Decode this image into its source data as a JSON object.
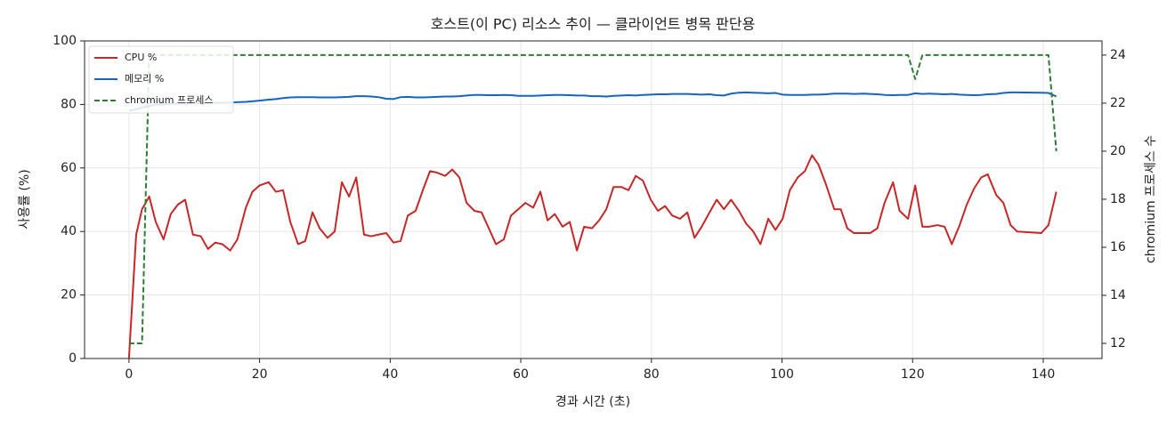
{
  "chart_data": {
    "type": "line",
    "title": "호스트(이 PC) 리소스 추이 — 클라이언트 병목 판단용",
    "x_label": "경과 시간 (초)",
    "y_label": "사용률 (%)",
    "y2_label": "chromium 프로세스 수",
    "xlim": [
      -6.8,
      149
    ],
    "xticks": [
      0,
      20,
      40,
      60,
      80,
      100,
      120,
      140
    ],
    "ylim": [
      0,
      100
    ],
    "yticks": [
      0,
      20,
      40,
      60,
      80,
      100
    ],
    "y2lim": [
      11.37,
      24.59
    ],
    "y2ticks": [
      12,
      14,
      16,
      18,
      20,
      22,
      24
    ],
    "grid": true,
    "legend": "upper left",
    "x": [
      0,
      1.1,
      2,
      3.1,
      4.1,
      5.3,
      6.4,
      7.5,
      8.6,
      9.8,
      11,
      12.1,
      13.2,
      14.3,
      15.5,
      16.6,
      17.9,
      18.9,
      20,
      21.4,
      22.5,
      23.6,
      24.7,
      25.9,
      27,
      28.1,
      29.2,
      30.4,
      31.5,
      32.6,
      33.7,
      34.8,
      36,
      37.1,
      38.2,
      39.4,
      40.5,
      41.6,
      42.7,
      43.9,
      45,
      46.1,
      47.2,
      48.4,
      49.5,
      50.6,
      51.7,
      52.9,
      54,
      55.1,
      56.2,
      57.4,
      58.5,
      59.6,
      60.7,
      61.9,
      63,
      64.1,
      65.2,
      66.4,
      67.5,
      68.6,
      69.7,
      70.9,
      72,
      73.1,
      74.2,
      75.4,
      76.5,
      77.6,
      78.7,
      79.9,
      81,
      82.1,
      83.2,
      84.4,
      85.5,
      86.6,
      87.7,
      88.9,
      90,
      91.1,
      92.2,
      93.4,
      94.5,
      95.6,
      96.7,
      97.9,
      99,
      100.1,
      101.2,
      102.4,
      103.5,
      104.6,
      105.6,
      106.7,
      108,
      109,
      110,
      111,
      112.5,
      113.5,
      114.6,
      115.7,
      117,
      118,
      119.3,
      120.4,
      121.5,
      122.5,
      123.8,
      124.9,
      126,
      127.2,
      128.3,
      129.4,
      130.5,
      131.5,
      132.8,
      133.9,
      135,
      136,
      139.7,
      140.8,
      142
    ],
    "series": [
      {
        "name": "CPU %",
        "color": "#c62828",
        "dash": false,
        "axis": "y",
        "values": [
          0,
          39,
          47,
          51,
          43,
          37.5,
          45.5,
          48.5,
          50,
          39,
          38.5,
          34.5,
          36.5,
          36,
          34,
          37.5,
          47.5,
          52.5,
          54.5,
          55.5,
          52.5,
          53,
          43,
          36,
          37,
          46,
          41,
          38,
          40,
          55.5,
          51,
          57,
          39,
          38.5,
          39,
          39.5,
          36.5,
          37,
          45,
          46.5,
          53,
          59,
          58.5,
          57.5,
          59.5,
          57,
          49,
          46.5,
          46,
          41,
          36,
          37.5,
          45,
          47,
          49,
          47.5,
          52.5,
          43.5,
          45.5,
          41.5,
          43,
          34,
          41.5,
          41,
          43.5,
          47,
          54,
          54,
          53,
          57.5,
          56,
          50,
          46.5,
          48,
          45,
          44,
          46,
          38,
          41.5,
          46,
          50,
          47,
          50,
          46.5,
          42.5,
          40,
          36,
          44,
          40.5,
          44,
          53,
          57,
          59,
          64,
          61,
          55,
          47,
          47,
          41,
          39.5,
          39.5,
          39.5,
          41,
          49,
          55.5,
          46.5,
          44,
          54.5,
          41.5,
          41.5,
          42,
          41.5,
          36,
          42,
          48.5,
          53.5,
          57,
          58,
          51.5,
          49,
          42,
          40,
          39.5,
          42,
          52.5
        ]
      },
      {
        "name": "메모리 %",
        "color": "#1565c0",
        "dash": false,
        "axis": "y",
        "values": [
          78,
          78.5,
          79,
          79.5,
          80,
          80,
          80.2,
          80.3,
          80.3,
          80.4,
          80.4,
          80.5,
          80.5,
          80.5,
          80.6,
          80.7,
          80.8,
          81,
          81.2,
          81.5,
          81.7,
          82,
          82.2,
          82.3,
          82.3,
          82.3,
          82.2,
          82.2,
          82.2,
          82.3,
          82.4,
          82.6,
          82.6,
          82.5,
          82.3,
          81.8,
          81.7,
          82.3,
          82.4,
          82.2,
          82.2,
          82.3,
          82.4,
          82.5,
          82.5,
          82.6,
          82.8,
          83,
          83,
          82.9,
          82.9,
          83,
          82.9,
          82.7,
          82.7,
          82.7,
          82.8,
          82.9,
          83,
          83,
          82.9,
          82.8,
          82.8,
          82.6,
          82.6,
          82.5,
          82.7,
          82.8,
          82.9,
          82.8,
          83,
          83.1,
          83.2,
          83.2,
          83.3,
          83.3,
          83.3,
          83.2,
          83.1,
          83.2,
          82.9,
          82.8,
          83.4,
          83.7,
          83.8,
          83.7,
          83.6,
          83.5,
          83.6,
          83.1,
          83,
          83,
          83,
          83.1,
          83.1,
          83.2,
          83.4,
          83.4,
          83.4,
          83.3,
          83.4,
          83.3,
          83.2,
          83,
          82.9,
          83,
          83,
          83.5,
          83.3,
          83.4,
          83.3,
          83.2,
          83.3,
          83.1,
          83,
          82.9,
          83,
          83.2,
          83.3,
          83.6,
          83.8,
          83.8,
          83.7,
          83.6,
          82.5
        ]
      },
      {
        "name": "chromium 프로세스",
        "color": "#2e7d32",
        "dash": true,
        "axis": "y2",
        "values": [
          12,
          12,
          12,
          24,
          24,
          24,
          24,
          24,
          24,
          24,
          24,
          24,
          24,
          24,
          24,
          24,
          24,
          24,
          24,
          24,
          24,
          24,
          24,
          24,
          24,
          24,
          24,
          24,
          24,
          24,
          24,
          24,
          24,
          24,
          24,
          24,
          24,
          24,
          24,
          24,
          24,
          24,
          24,
          24,
          24,
          24,
          24,
          24,
          24,
          24,
          24,
          24,
          24,
          24,
          24,
          24,
          24,
          24,
          24,
          24,
          24,
          24,
          24,
          24,
          24,
          24,
          24,
          24,
          24,
          24,
          24,
          24,
          24,
          24,
          24,
          24,
          24,
          24,
          24,
          24,
          24,
          24,
          24,
          24,
          24,
          24,
          24,
          24,
          24,
          24,
          24,
          24,
          24,
          24,
          24,
          24,
          24,
          24,
          24,
          24,
          24,
          24,
          24,
          24,
          24,
          24,
          24,
          23,
          24,
          24,
          24,
          24,
          24,
          24,
          24,
          24,
          24,
          24,
          24,
          24,
          24,
          24,
          24,
          24,
          20
        ]
      }
    ]
  }
}
